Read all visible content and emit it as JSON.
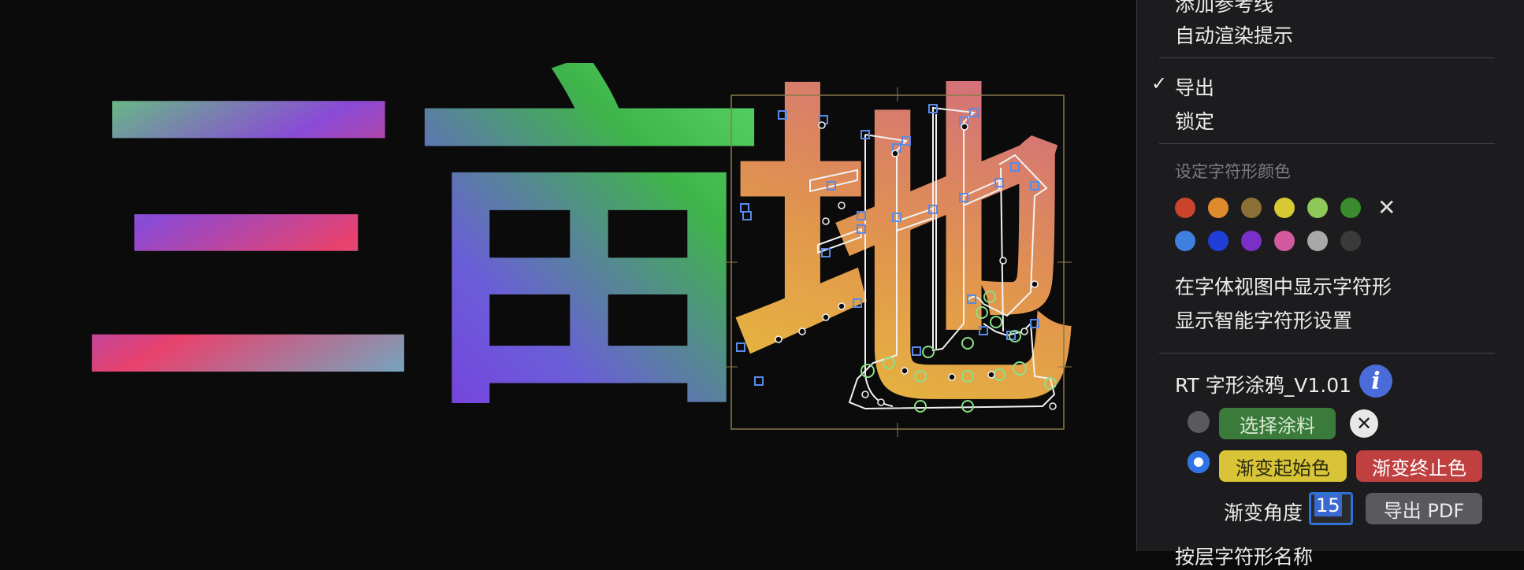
{
  "canvas": {
    "glyphs": [
      {
        "char": "三"
      },
      {
        "char": "亩"
      },
      {
        "char": "地"
      }
    ]
  },
  "menu": {
    "item_add_guides": "添加参考线",
    "item_auto_render_hints": "自动渲染提示",
    "item_export": "导出",
    "item_export_checked": true,
    "item_lock": "锁定",
    "header_glyph_color": "设定字符形颜色",
    "colors_row1": [
      "#c9442b",
      "#e08a2e",
      "#8c7036",
      "#d8c834",
      "#8ec85a",
      "#3a8a2e"
    ],
    "colors_row2": [
      "#3f7fe0",
      "#1f3ed8",
      "#7a2fc8",
      "#d45aa0",
      "#a8a8a8",
      "#3a3a3a"
    ],
    "item_show_in_font_view": "在字体视图中显示字符形",
    "item_smart_glyph_settings": "显示智能字符形设置",
    "plugin_title": "RT 字形涂鸦_V1.01",
    "btn_select_paint": "选择涂料",
    "btn_gradient_start": "渐变起始色",
    "btn_gradient_end": "渐变终止色",
    "gradient_angle_label": "渐变角度",
    "gradient_angle_value": "15",
    "btn_export_pdf": "导出 PDF",
    "item_cut_off": "按层字符形名称"
  }
}
